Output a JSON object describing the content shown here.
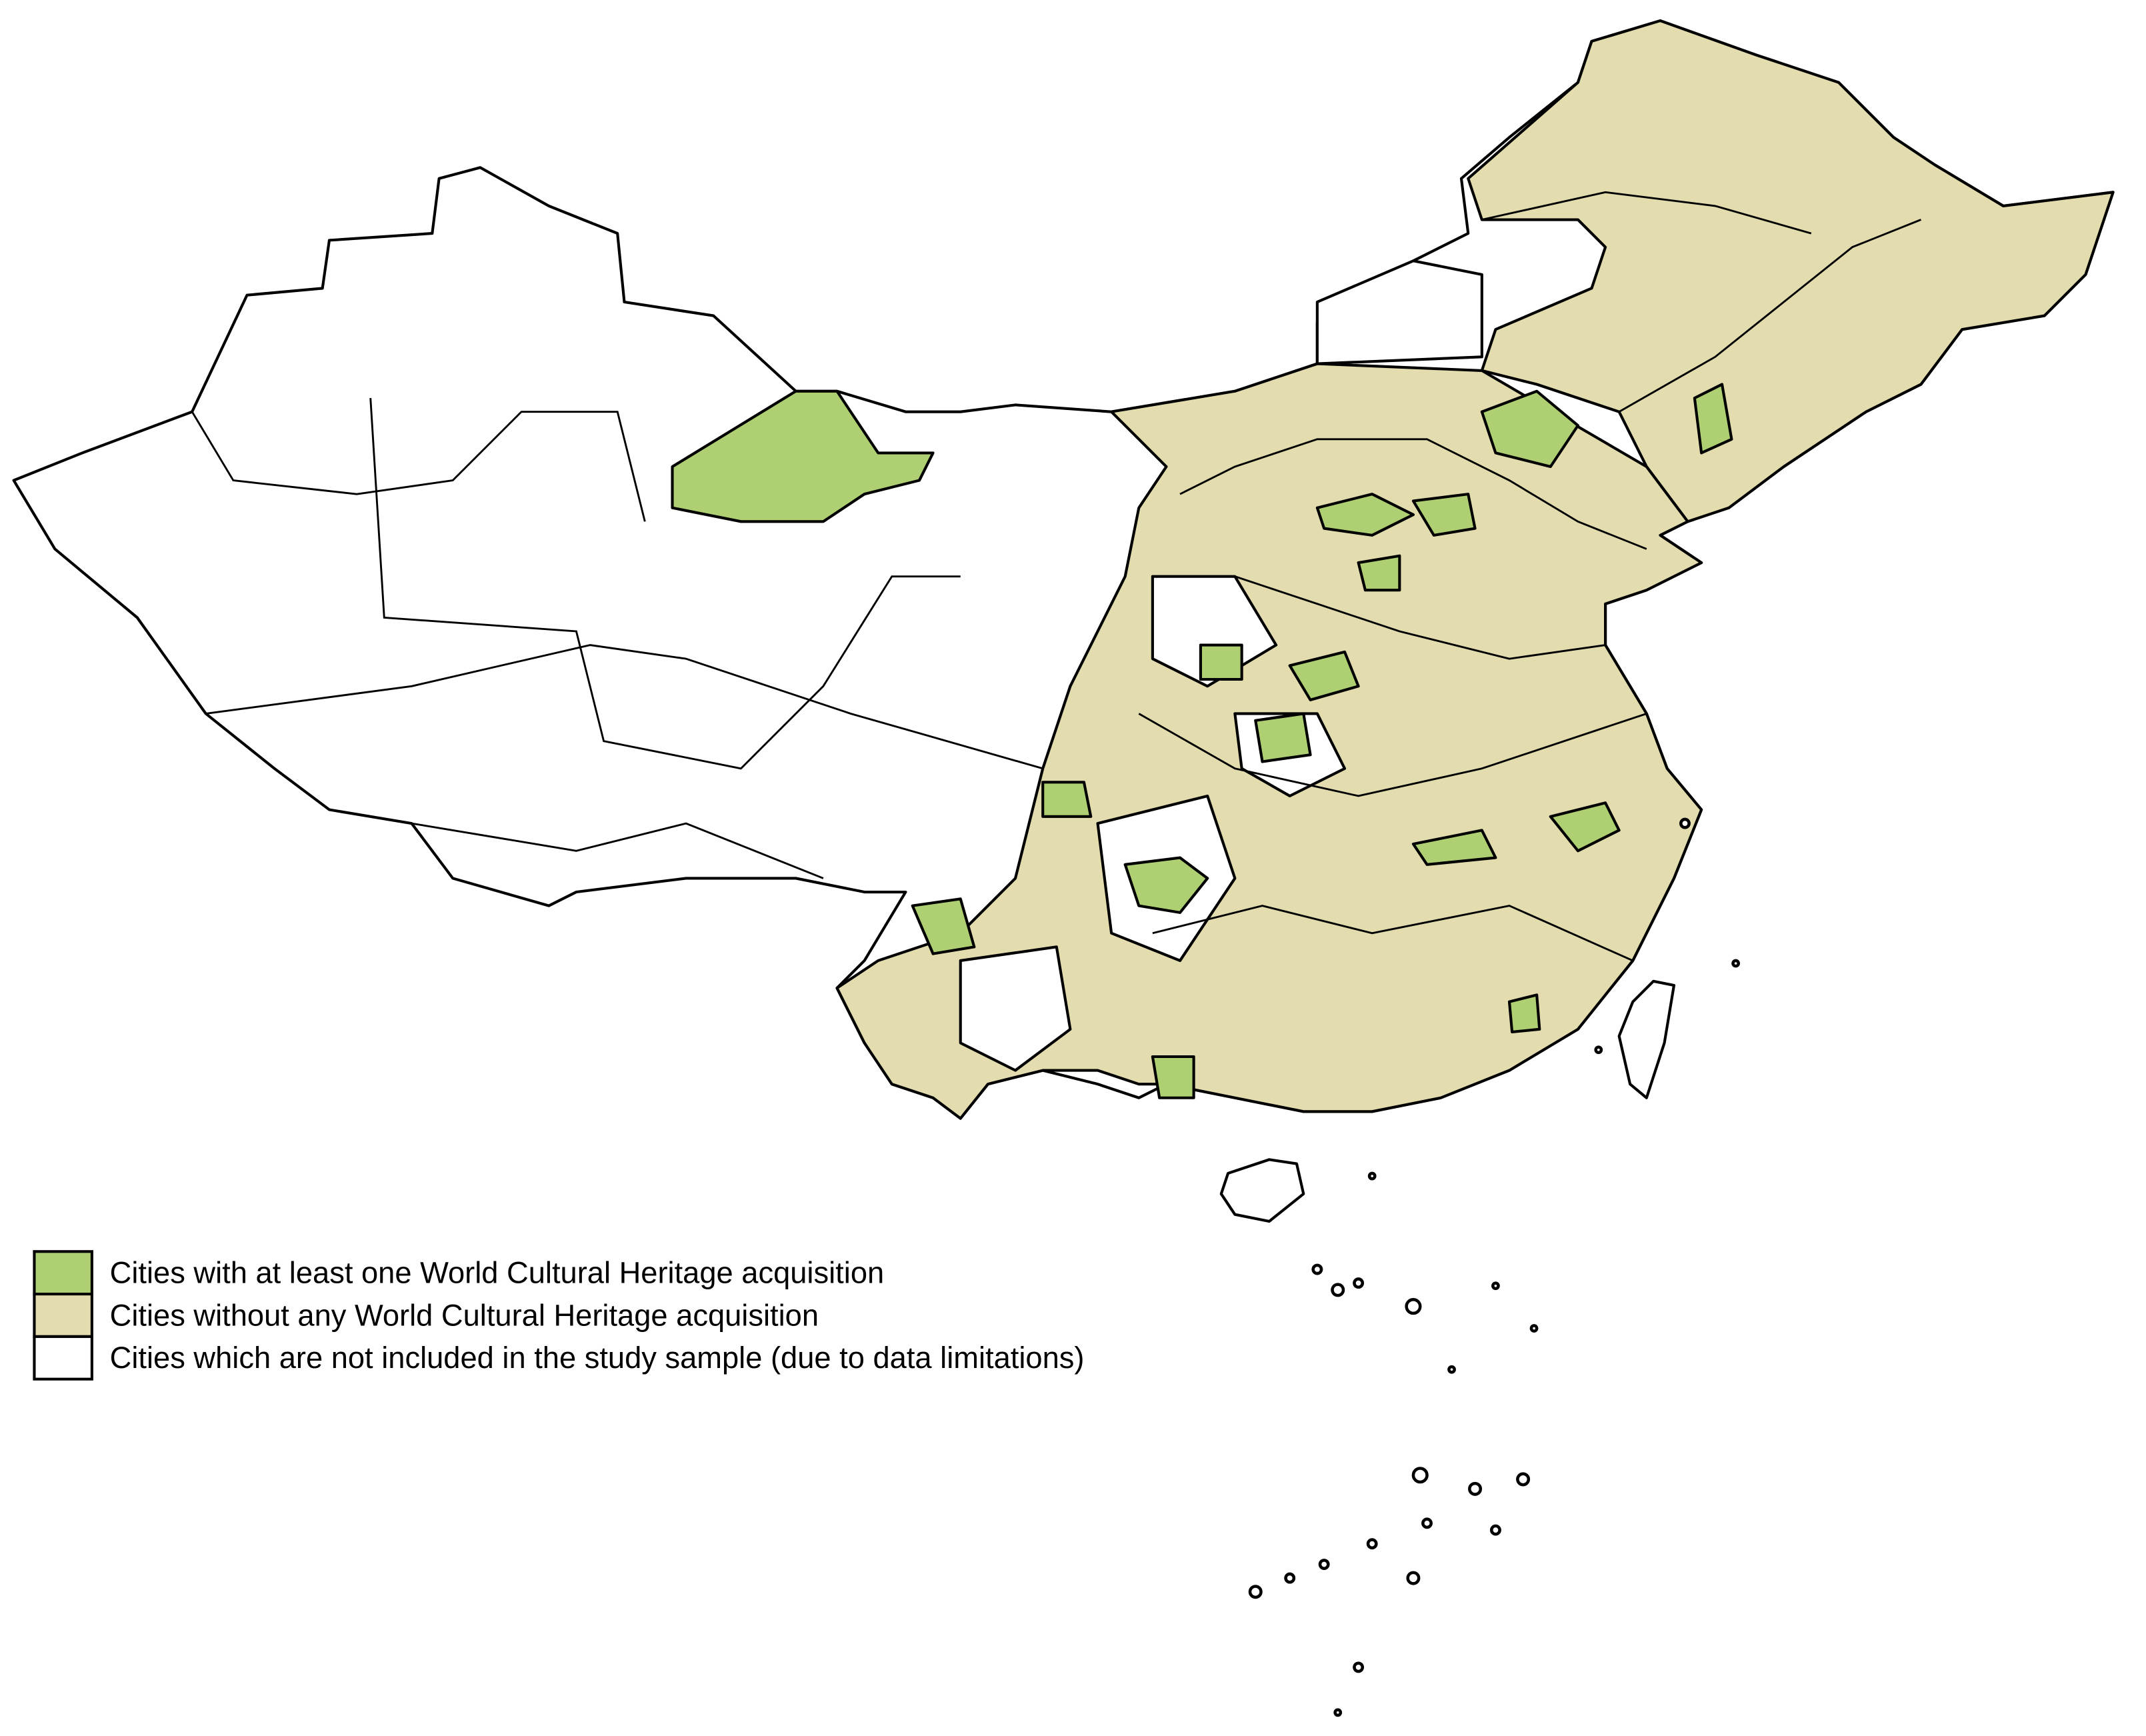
{
  "legend": {
    "items": [
      {
        "label": "Cities with at least one World Cultural Heritage acquisition",
        "color": "#aecf72"
      },
      {
        "label": "Cities without any World Cultural Heritage acquisition",
        "color": "#e3dcaf"
      },
      {
        "label": "Cities which are  not included in the study sample (due to data limitations)",
        "color": "#ffffff"
      }
    ]
  }
}
